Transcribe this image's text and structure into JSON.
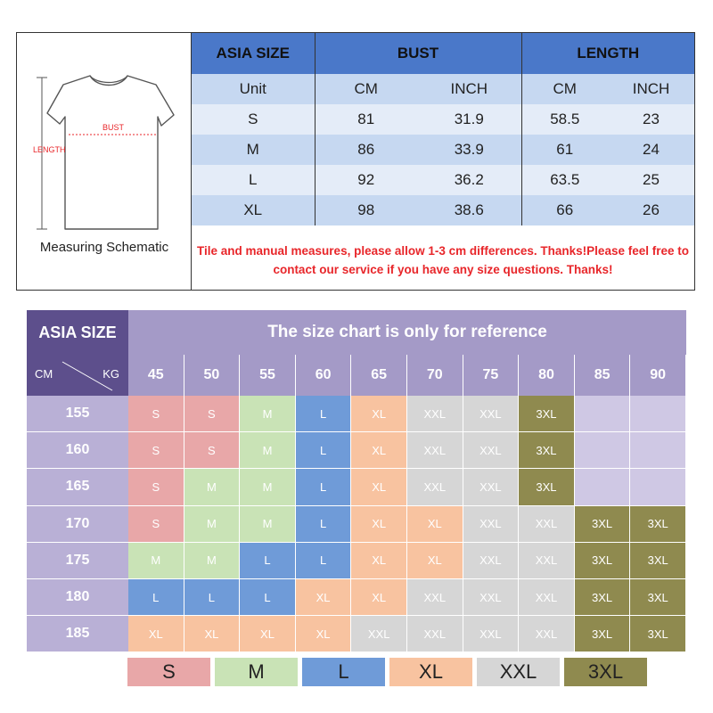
{
  "schematic": {
    "label": "Measuring Schematic",
    "bust_label": "BUST",
    "length_label": "LENGTH"
  },
  "size_table": {
    "headers": [
      "ASIA SIZE",
      "BUST",
      "LENGTH"
    ],
    "unit_row": [
      "Unit",
      "CM",
      "INCH",
      "CM",
      "INCH"
    ],
    "rows": [
      [
        "S",
        "81",
        "31.9",
        "58.5",
        "23"
      ],
      [
        "M",
        "86",
        "33.9",
        "61",
        "24"
      ],
      [
        "L",
        "92",
        "36.2",
        "63.5",
        "25"
      ],
      [
        "XL",
        "98",
        "38.6",
        "66",
        "26"
      ]
    ]
  },
  "notice": "Tile and manual measures, please allow 1-3 cm differences. Thanks!Please feel free to contact our service if you have any size questions. Thanks!",
  "grid": {
    "title_left": "ASIA SIZE",
    "title": "The size chart is only for reference",
    "corner_cm": "CM",
    "corner_kg": "KG",
    "kg": [
      "45",
      "50",
      "55",
      "60",
      "65",
      "70",
      "75",
      "80",
      "85",
      "90"
    ],
    "cm": [
      "155",
      "160",
      "165",
      "170",
      "175",
      "180",
      "185"
    ],
    "cells": [
      [
        "S",
        "S",
        "M",
        "L",
        "XL",
        "XXL",
        "XXL",
        "3XL",
        "",
        ""
      ],
      [
        "S",
        "S",
        "M",
        "L",
        "XL",
        "XXL",
        "XXL",
        "3XL",
        "",
        ""
      ],
      [
        "S",
        "M",
        "M",
        "L",
        "XL",
        "XXL",
        "XXL",
        "3XL",
        "",
        ""
      ],
      [
        "S",
        "M",
        "M",
        "L",
        "XL",
        "XL",
        "XXL",
        "XXL",
        "3XL",
        "3XL"
      ],
      [
        "M",
        "M",
        "L",
        "L",
        "XL",
        "XL",
        "XXL",
        "XXL",
        "3XL",
        "3XL"
      ],
      [
        "L",
        "L",
        "L",
        "XL",
        "XL",
        "XXL",
        "XXL",
        "XXL",
        "3XL",
        "3XL"
      ],
      [
        "XL",
        "XL",
        "XL",
        "XL",
        "XXL",
        "XXL",
        "XXL",
        "XXL",
        "3XL",
        "3XL"
      ]
    ]
  },
  "legend": [
    "S",
    "M",
    "L",
    "XL",
    "XXL",
    "3XL"
  ],
  "colors": {
    "S": "#e8a7a8",
    "M": "#c9e3b6",
    "L": "#6f9bd8",
    "XL": "#f8c3a0",
    "XXL": "#d6d6d6",
    "3XL": "#8f8a4f",
    "header_blue": "#4a78c9",
    "header_purple": "#5d4f8c",
    "notice_red": "#e8262a"
  }
}
